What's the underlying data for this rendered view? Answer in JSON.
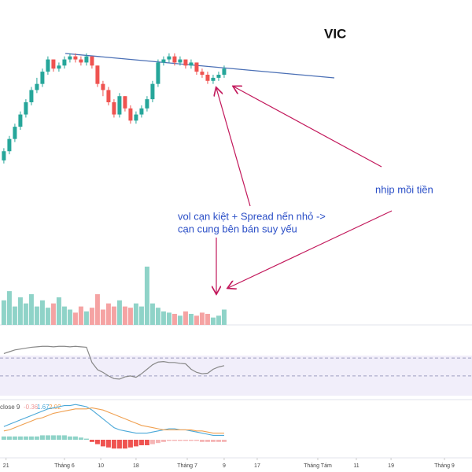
{
  "chart_data": [
    {
      "type": "candlestick",
      "title": "VIC",
      "annotations": [
        "vol cạn kiệt + Spread nến nhỏ ->",
        "cạn cung bên bán suy yếu",
        "nhịp mồi tiền"
      ],
      "xlim": [
        -0.7,
        85
      ],
      "xticks": [
        {
          "value": 0.4,
          "label": "21"
        },
        {
          "value": 11,
          "label": "Tháng 6"
        },
        {
          "value": 17.6,
          "label": "10"
        },
        {
          "value": 24,
          "label": "18"
        },
        {
          "value": 33.3,
          "label": "Tháng 7"
        },
        {
          "value": 40,
          "label": "9"
        },
        {
          "value": 46,
          "label": "17"
        },
        {
          "value": 57,
          "label": "Tháng Tám"
        },
        {
          "value": 64,
          "label": "11"
        },
        {
          "value": 70.3,
          "label": "19"
        },
        {
          "value": 80,
          "label": "Tháng 9"
        }
      ],
      "ylim": [
        48,
        84
      ],
      "up_color": "#26a69a",
      "down_color": "#ef5350",
      "open": [
        47,
        50,
        54,
        58,
        62,
        66,
        70,
        72,
        76,
        80,
        77,
        78,
        80,
        81,
        80,
        79,
        81,
        78,
        72,
        70,
        66,
        62,
        68,
        64,
        60,
        62,
        64,
        67,
        72,
        79,
        80,
        81,
        79,
        80,
        78,
        79,
        76,
        75,
        73,
        74,
        75
      ],
      "close": [
        50,
        54,
        58,
        62,
        66,
        70,
        72,
        76,
        80,
        77,
        78,
        80,
        81,
        80,
        79,
        81,
        78,
        72,
        70,
        66,
        62,
        68,
        64,
        60,
        62,
        64,
        67,
        72,
        79,
        80,
        81,
        79,
        80,
        78,
        79,
        76,
        75,
        73,
        74,
        75,
        77
      ],
      "high": [
        51,
        55,
        59,
        63,
        67,
        71,
        74,
        77,
        81,
        80,
        79,
        81,
        82,
        82,
        81,
        82,
        81,
        78,
        73,
        71,
        67,
        69,
        68,
        65,
        63,
        65,
        68,
        73,
        80,
        81,
        82,
        82,
        81,
        80,
        80,
        79,
        77,
        76,
        75,
        76,
        78
      ],
      "low": [
        46,
        49,
        53,
        57,
        61,
        65,
        69,
        71,
        75,
        76,
        76,
        77,
        79,
        79,
        78,
        78,
        77,
        71,
        68,
        65,
        61,
        61,
        63,
        59,
        59,
        61,
        63,
        66,
        71,
        78,
        79,
        78,
        78,
        77,
        77,
        75,
        74,
        72,
        72,
        73,
        74
      ]
    },
    {
      "type": "bar",
      "ylim": [
        0,
        100
      ],
      "values": [
        40,
        55,
        30,
        45,
        35,
        50,
        30,
        40,
        28,
        35,
        45,
        30,
        25,
        20,
        30,
        22,
        28,
        50,
        25,
        35,
        30,
        40,
        30,
        28,
        35,
        30,
        95,
        35,
        28,
        22,
        20,
        18,
        15,
        22,
        18,
        15,
        20,
        18,
        12,
        15,
        25
      ]
    },
    {
      "type": "line",
      "ylim": [
        0,
        100
      ],
      "levels": [
        70,
        30
      ],
      "color": "#888888",
      "values": [
        80,
        84,
        88,
        90,
        92,
        94,
        95,
        96,
        96,
        95,
        96,
        96,
        95,
        96,
        95,
        94,
        60,
        44,
        38,
        30,
        24,
        23,
        28,
        30,
        27,
        35,
        45,
        55,
        61,
        62,
        60,
        60,
        58,
        57,
        45,
        38,
        35,
        36,
        45,
        50,
        53
      ]
    },
    {
      "type": "macd",
      "ylim": [
        -1.5,
        3.5
      ],
      "legend_label": "close 9",
      "legend_values": [
        -0.36,
        1.67,
        2.02
      ],
      "series": [
        {
          "name": "macd",
          "color": "#4aa8d8",
          "values": [
            1.2,
            1.4,
            1.6,
            1.8,
            2.0,
            2.2,
            2.4,
            2.6,
            2.8,
            2.9,
            3.0,
            3.1,
            3.1,
            3.2,
            3.1,
            3.0,
            2.7,
            2.3,
            1.9,
            1.5,
            1.1,
            0.9,
            0.8,
            0.7,
            0.6,
            0.6,
            0.6,
            0.7,
            0.8,
            0.9,
            1.0,
            1.0,
            0.9,
            0.9,
            0.8,
            0.7,
            0.6,
            0.5,
            0.4,
            0.4,
            0.4
          ]
        },
        {
          "name": "signal",
          "color": "#f0a050",
          "values": [
            0.8,
            0.9,
            1.1,
            1.3,
            1.5,
            1.7,
            1.9,
            2.0,
            2.2,
            2.4,
            2.5,
            2.6,
            2.7,
            2.8,
            2.8,
            2.8,
            2.9,
            2.8,
            2.7,
            2.5,
            2.3,
            2.1,
            1.9,
            1.7,
            1.5,
            1.3,
            1.2,
            1.1,
            1.0,
            0.9,
            0.9,
            0.9,
            0.9,
            0.9,
            0.9,
            0.8,
            0.8,
            0.7,
            0.6,
            0.6,
            0.6
          ]
        }
      ],
      "histogram": [
        0.3,
        0.3,
        0.3,
        0.3,
        0.3,
        0.3,
        0.3,
        0.4,
        0.4,
        0.4,
        0.4,
        0.4,
        0.3,
        0.3,
        0.2,
        0.1,
        -0.2,
        -0.4,
        -0.6,
        -0.7,
        -0.8,
        -0.8,
        -0.8,
        -0.7,
        -0.6,
        -0.5,
        -0.5,
        -0.4,
        -0.3,
        -0.2,
        -0.1,
        -0.1,
        -0.1,
        -0.1,
        -0.1,
        -0.1,
        -0.2,
        -0.2,
        -0.2,
        -0.2,
        -0.2
      ]
    }
  ]
}
